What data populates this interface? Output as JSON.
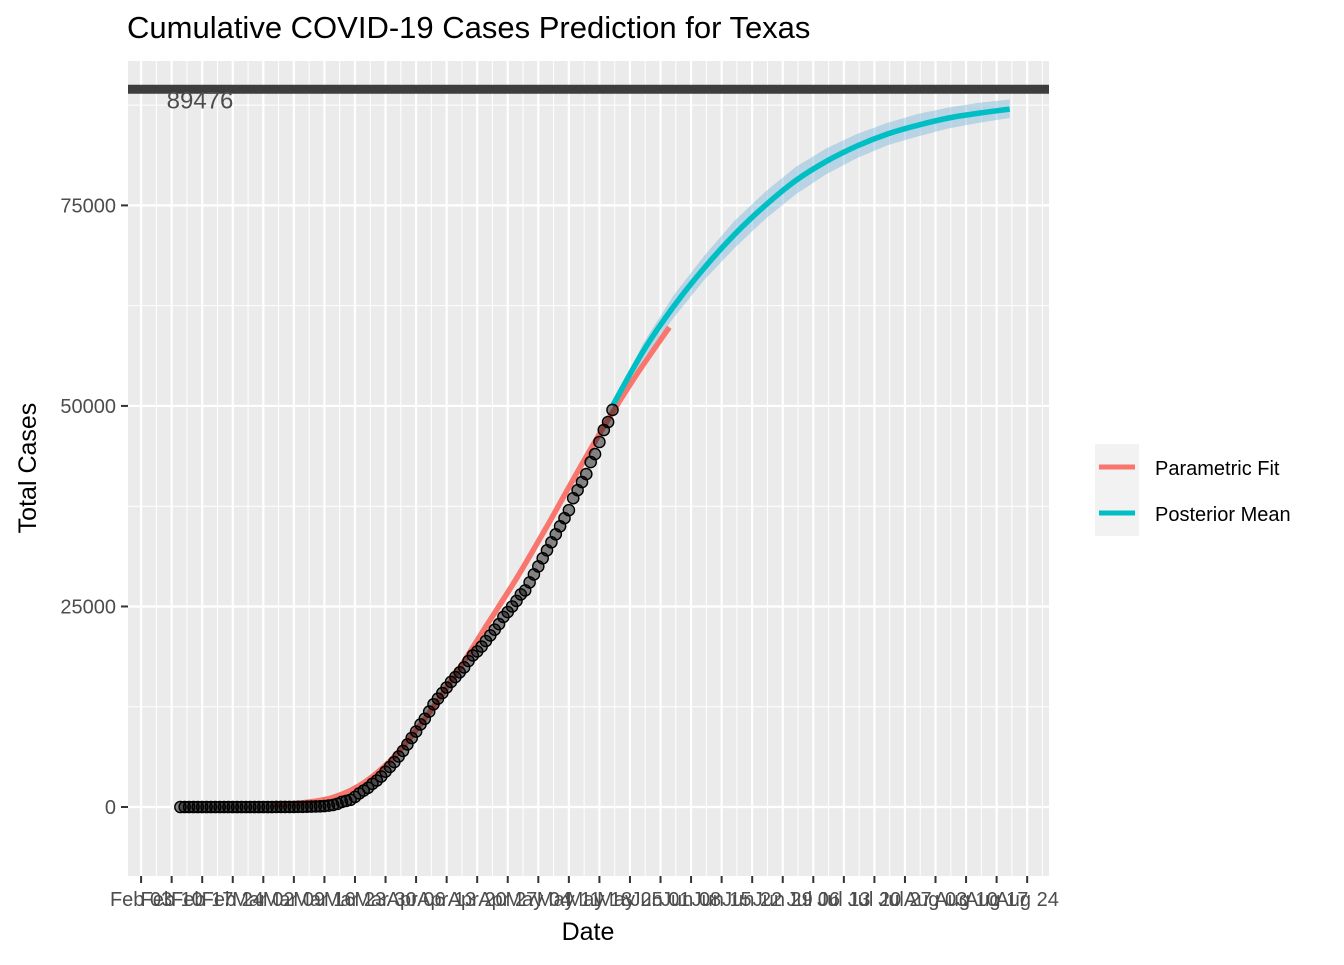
{
  "chart_data": {
    "type": "line",
    "title": "Cumulative COVID-19 Cases Prediction for Texas",
    "xlabel": "Date",
    "ylabel": "Total Cases",
    "ylim": [
      -8600,
      93000
    ],
    "xlim": [
      "2020-01-31",
      "2020-08-29"
    ],
    "grid": true,
    "legend_position": "right",
    "x_tick_labels": [
      "Feb 03",
      "Feb 10",
      "Feb 17",
      "Feb 24",
      "Mar 02",
      "Mar 09",
      "Mar 16",
      "Mar 23",
      "Mar 30",
      "Apr 06",
      "Apr 13",
      "Apr 20",
      "Apr 27",
      "May 04",
      "May 11",
      "May 18",
      "May 25",
      "Jun 01",
      "Jun 08",
      "Jun 15",
      "Jun 22",
      "Jun 29",
      "Jul 06",
      "Jul 13",
      "Jul 20",
      "Jul 27",
      "Aug 03",
      "Aug 10",
      "Aug 17",
      "Aug 24"
    ],
    "y_ticks": [
      0,
      25000,
      50000,
      75000
    ],
    "y_tick_labels": [
      "0",
      "25000",
      "50000",
      "75000"
    ],
    "hline": {
      "value": 89476,
      "label": "89476",
      "color": "#3d3d3d"
    },
    "series": [
      {
        "name": "Parametric Fit",
        "color": "#F8766D",
        "x": [
          "2020-03-04",
          "2020-03-11",
          "2020-03-18",
          "2020-03-25",
          "2020-04-01",
          "2020-04-08",
          "2020-04-15",
          "2020-04-22",
          "2020-04-29",
          "2020-05-06",
          "2020-05-13",
          "2020-05-20",
          "2020-05-27",
          "2020-06-03"
        ],
        "y": [
          300,
          520,
          1200,
          3000,
          6300,
          11000,
          16500,
          22500,
          28500,
          35000,
          41800,
          48300,
          54300,
          59800
        ]
      },
      {
        "name": "Posterior Mean",
        "color": "#00BFC4",
        "x": [
          "2020-05-21",
          "2020-05-28",
          "2020-06-04",
          "2020-06-11",
          "2020-06-18",
          "2020-06-25",
          "2020-07-02",
          "2020-07-09",
          "2020-07-16",
          "2020-07-23",
          "2020-07-30",
          "2020-08-06",
          "2020-08-13",
          "2020-08-20"
        ],
        "y": [
          50000,
          56800,
          62400,
          67200,
          71400,
          75000,
          78100,
          80500,
          82400,
          83900,
          85000,
          85900,
          86500,
          87000
        ],
        "band_low": [
          50000,
          55800,
          61000,
          65700,
          69700,
          73300,
          76400,
          78900,
          80900,
          82500,
          83600,
          84600,
          85300,
          85900
        ],
        "band_high": [
          50000,
          57800,
          63800,
          68700,
          73100,
          76700,
          79800,
          82100,
          83900,
          85300,
          86400,
          87200,
          87800,
          88200
        ]
      }
    ],
    "observed": {
      "x": [
        "2020-02-12",
        "2020-02-13",
        "2020-02-14",
        "2020-02-15",
        "2020-02-16",
        "2020-02-17",
        "2020-02-18",
        "2020-02-19",
        "2020-02-20",
        "2020-02-21",
        "2020-02-22",
        "2020-02-23",
        "2020-02-24",
        "2020-02-25",
        "2020-02-26",
        "2020-02-27",
        "2020-02-28",
        "2020-02-29",
        "2020-03-01",
        "2020-03-02",
        "2020-03-03",
        "2020-03-04",
        "2020-03-05",
        "2020-03-06",
        "2020-03-07",
        "2020-03-08",
        "2020-03-09",
        "2020-03-10",
        "2020-03-11",
        "2020-03-12",
        "2020-03-13",
        "2020-03-14",
        "2020-03-15",
        "2020-03-16",
        "2020-03-17",
        "2020-03-18",
        "2020-03-19",
        "2020-03-20",
        "2020-03-21",
        "2020-03-22",
        "2020-03-23",
        "2020-03-24",
        "2020-03-25",
        "2020-03-26",
        "2020-03-27",
        "2020-03-28",
        "2020-03-29",
        "2020-03-30",
        "2020-03-31",
        "2020-04-01",
        "2020-04-02",
        "2020-04-03",
        "2020-04-04",
        "2020-04-05",
        "2020-04-06",
        "2020-04-07",
        "2020-04-08",
        "2020-04-09",
        "2020-04-10",
        "2020-04-11",
        "2020-04-12",
        "2020-04-13",
        "2020-04-14",
        "2020-04-15",
        "2020-04-16",
        "2020-04-17",
        "2020-04-18",
        "2020-04-19",
        "2020-04-20",
        "2020-04-21",
        "2020-04-22",
        "2020-04-23",
        "2020-04-24",
        "2020-04-25",
        "2020-04-26",
        "2020-04-27",
        "2020-04-28",
        "2020-04-29",
        "2020-04-30",
        "2020-05-01",
        "2020-05-02",
        "2020-05-03",
        "2020-05-04",
        "2020-05-05",
        "2020-05-06",
        "2020-05-07",
        "2020-05-08",
        "2020-05-09",
        "2020-05-10",
        "2020-05-11",
        "2020-05-12",
        "2020-05-13",
        "2020-05-14",
        "2020-05-15",
        "2020-05-16",
        "2020-05-17",
        "2020-05-18",
        "2020-05-19",
        "2020-05-20",
        "2020-05-21"
      ],
      "y": [
        1,
        1,
        1,
        1,
        1,
        1,
        1,
        1,
        1,
        1,
        1,
        1,
        1,
        1,
        1,
        1,
        1,
        1,
        1,
        1,
        4,
        6,
        8,
        12,
        13,
        17,
        17,
        21,
        27,
        43,
        57,
        72,
        85,
        110,
        173,
        260,
        400,
        643,
        767,
        900,
        1260,
        1700,
        2050,
        2400,
        2900,
        3300,
        3800,
        4400,
        5000,
        5600,
        6300,
        7000,
        7800,
        8600,
        9400,
        10300,
        11000,
        11900,
        12800,
        13500,
        14200,
        14900,
        15600,
        16200,
        16800,
        17400,
        18200,
        18900,
        19400,
        20000,
        20700,
        21400,
        22100,
        22800,
        23700,
        24300,
        25000,
        25700,
        26500,
        27000,
        28000,
        29000,
        30000,
        31000,
        32000,
        33000,
        34000,
        35000,
        36000,
        37000,
        38500,
        39500,
        40500,
        41500,
        43000,
        44000,
        45500,
        47000,
        48000,
        49500
      ]
    }
  }
}
